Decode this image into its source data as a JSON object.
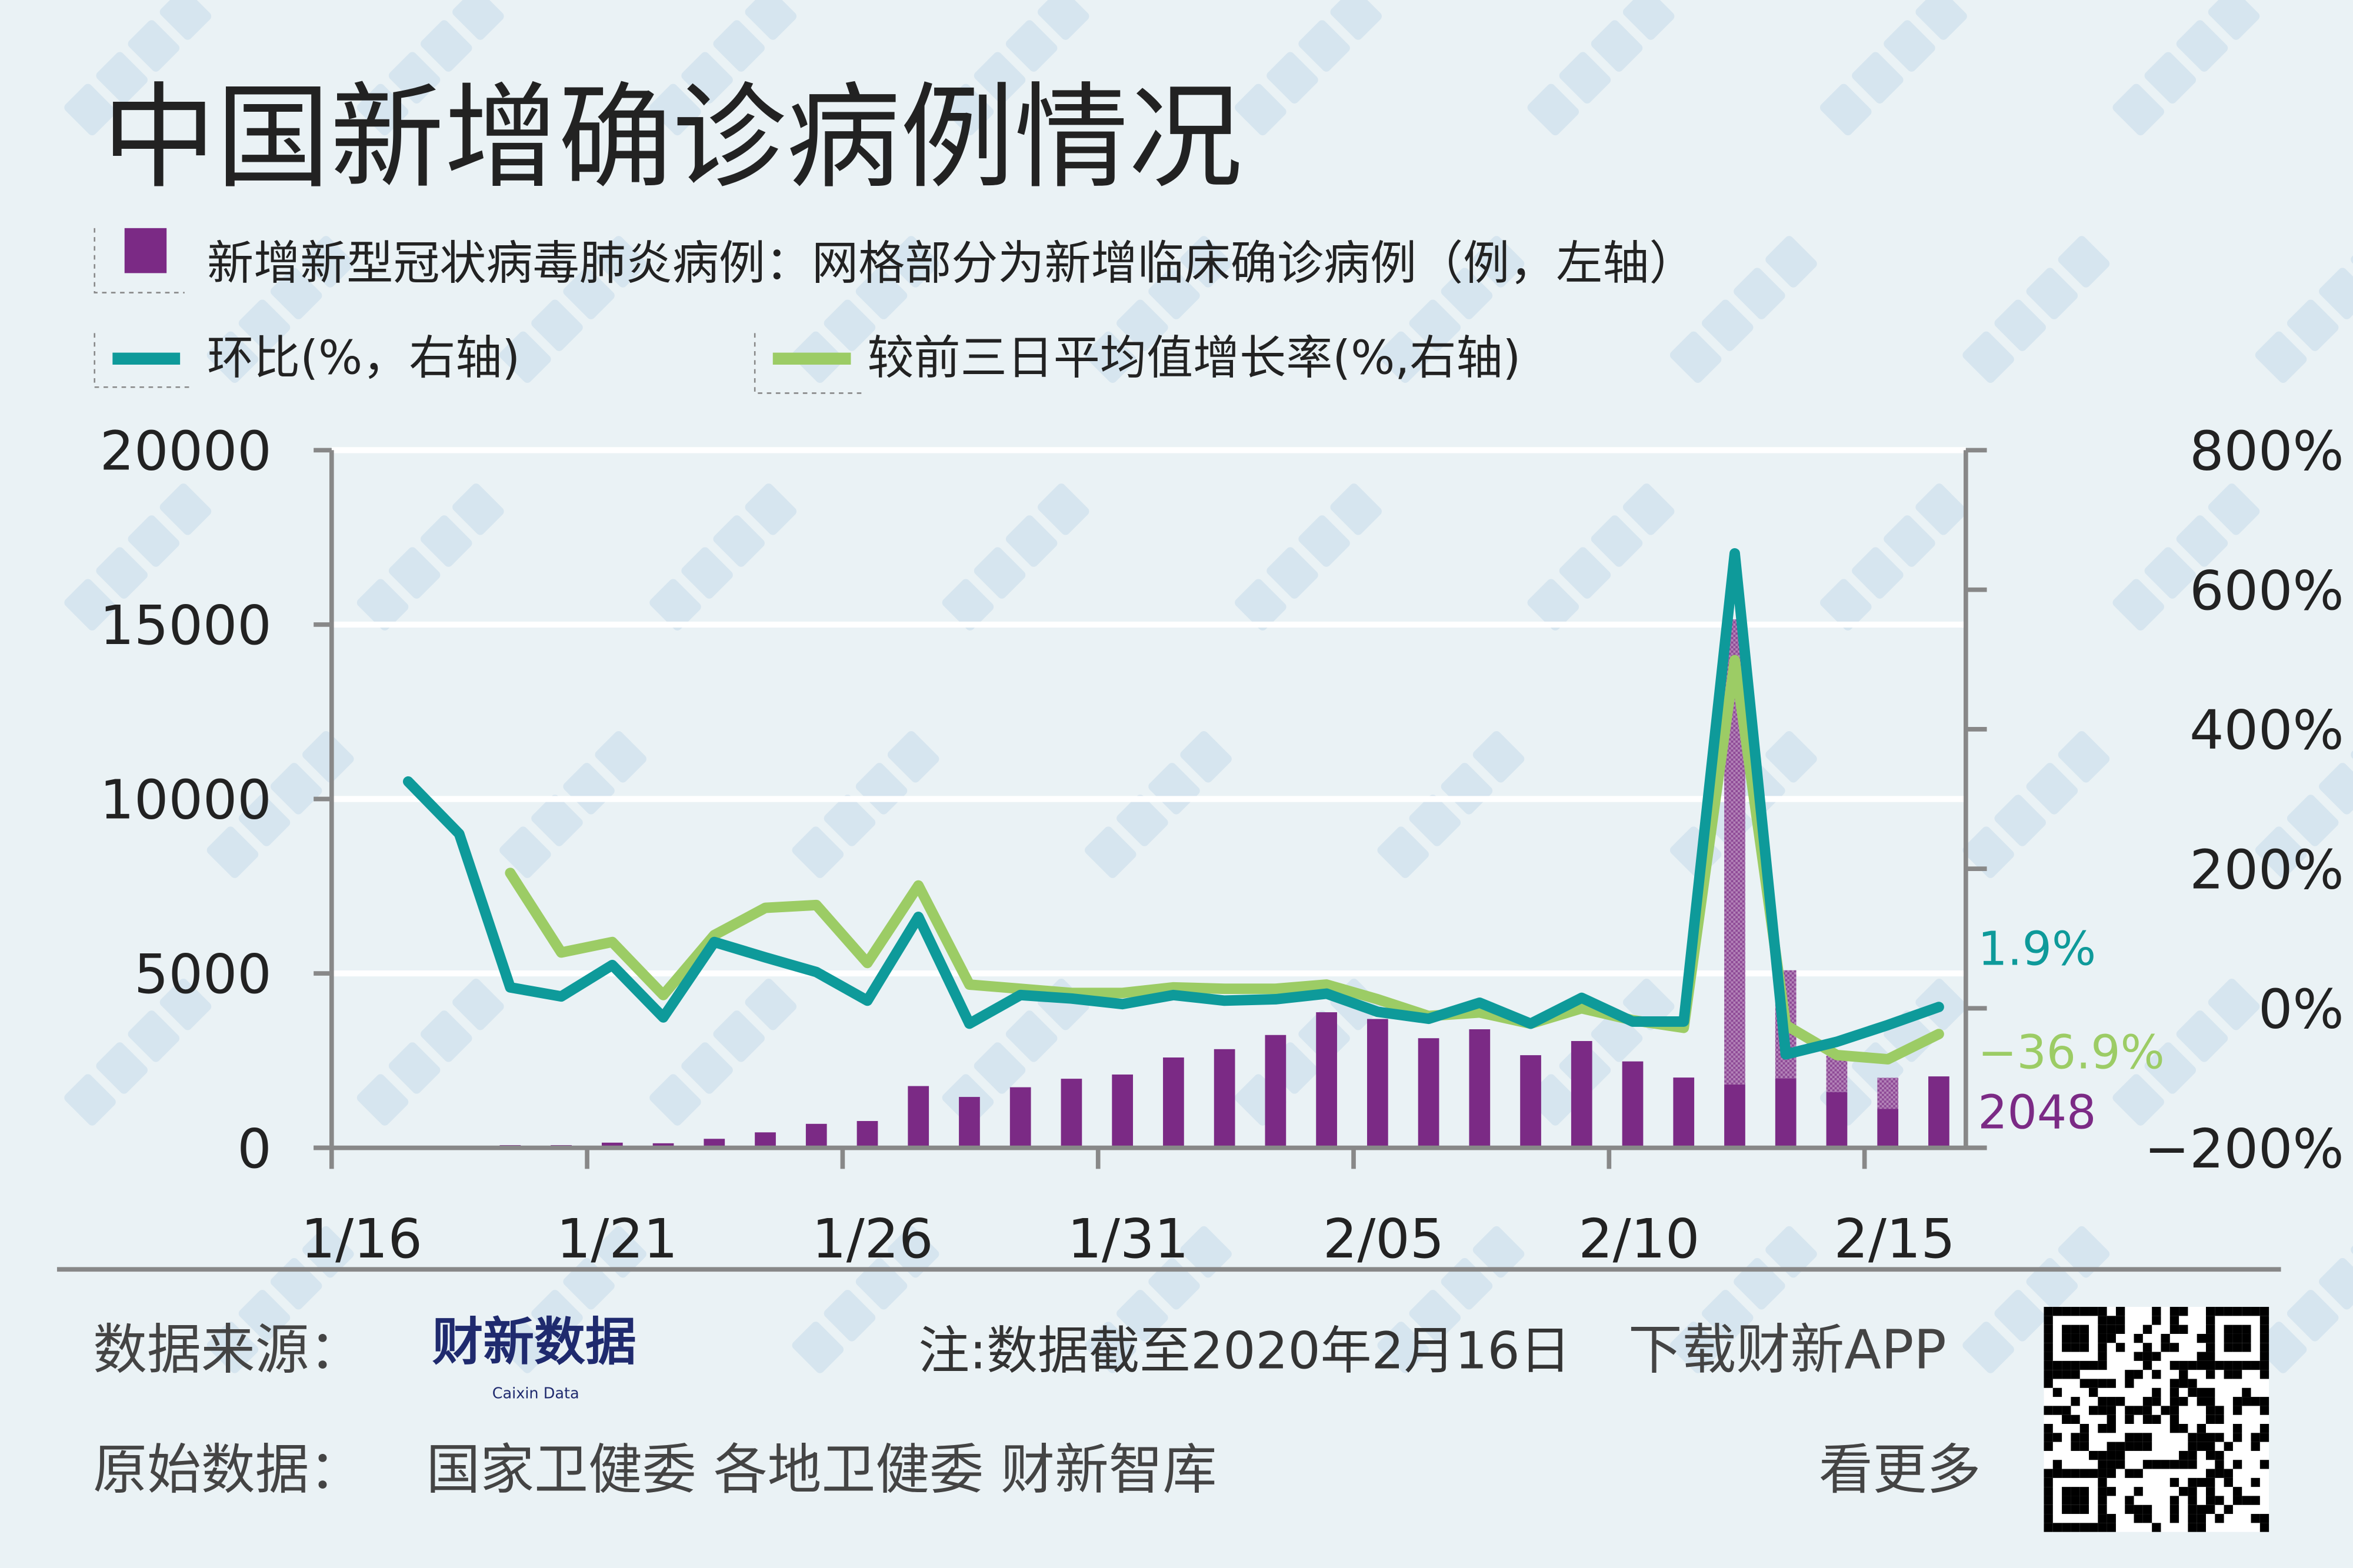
{
  "title": "中国新增确诊病例情况",
  "legend": {
    "bars": "新增新型冠状病毒肺炎病例：网格部分为新增临床确诊病例（例，左轴）",
    "line1": "环比(%，右轴)",
    "line2": "较前三日平均值增长率(%,右轴)"
  },
  "footer": {
    "source_label": "数据来源：",
    "source_logo": "财新数据",
    "source_logo_en": "Caixin Data",
    "note": "注:数据截至2020年2月16日",
    "download": "下载财新APP",
    "more": "看更多",
    "raw_label": "原始数据：",
    "raw_sources": "国家卫健委 各地卫健委 财新智库"
  },
  "watermark": "财新数据",
  "colors": {
    "bar": "#7b2a85",
    "bar_clinical": "#a668ad",
    "line1": "#0e9a9a",
    "line2": "#9ccc65",
    "background": "#eaf2f5"
  },
  "chart_data": {
    "type": "bar+line",
    "dates": [
      "1/16",
      "1/17",
      "1/18",
      "1/19",
      "1/20",
      "1/21",
      "1/22",
      "1/23",
      "1/24",
      "1/25",
      "1/26",
      "1/27",
      "1/28",
      "1/29",
      "1/30",
      "1/31",
      "2/01",
      "2/02",
      "2/03",
      "2/04",
      "2/05",
      "2/06",
      "2/07",
      "2/08",
      "2/09",
      "2/10",
      "2/11",
      "2/12",
      "2/13",
      "2/14",
      "2/15",
      "2/16"
    ],
    "x_tick_labels": [
      "1/16",
      "1/21",
      "1/26",
      "1/31",
      "2/05",
      "2/10",
      "2/15"
    ],
    "left_axis": {
      "ylim": [
        0,
        20000
      ],
      "ticks": [
        "0",
        "5000",
        "10000",
        "15000",
        "20000"
      ]
    },
    "right_axis": {
      "ylim": [
        -200,
        800
      ],
      "ticks": [
        "-200%",
        "0%",
        "200%",
        "400%",
        "600%",
        "800%"
      ]
    },
    "grid": true,
    "series": [
      {
        "name": "新增新型冠状病毒肺炎病例",
        "type": "bar",
        "axis": "left",
        "values": [
          4,
          17,
          59,
          77,
          77,
          149,
          131,
          259,
          444,
          688,
          769,
          1771,
          1459,
          1737,
          1981,
          2102,
          2590,
          2829,
          3235,
          3887,
          3694,
          3143,
          3399,
          2656,
          3062,
          2478,
          2015,
          15152,
          5090,
          2641,
          2009,
          2048
        ]
      },
      {
        "name": "新增临床确诊病例",
        "type": "bar-hatched",
        "axis": "left",
        "values": [
          0,
          0,
          0,
          0,
          0,
          0,
          0,
          0,
          0,
          0,
          0,
          0,
          0,
          0,
          0,
          0,
          0,
          0,
          0,
          0,
          0,
          0,
          0,
          0,
          0,
          0,
          0,
          13332,
          3095,
          1043,
          888,
          0
        ]
      },
      {
        "name": "环比",
        "type": "line",
        "axis": "right",
        "values": [
          null,
          325,
          250,
          30,
          17,
          62,
          -13,
          95,
          73,
          52,
          11,
          131,
          -22,
          19,
          14,
          6,
          19,
          11,
          13,
          21,
          -5,
          -15,
          8,
          -22,
          15,
          -19,
          -19,
          652,
          -66,
          -48,
          -24,
          1.9
        ]
      },
      {
        "name": "较前三日平均值增长率",
        "type": "line",
        "axis": "right",
        "values": [
          null,
          null,
          null,
          194,
          80,
          95,
          19,
          105,
          144,
          148,
          65,
          176,
          34,
          28,
          22,
          22,
          30,
          28,
          28,
          34,
          13,
          -11,
          -6,
          -22,
          0,
          -17,
          -28,
          499,
          -24,
          -67,
          -73,
          -36.9
        ]
      }
    ],
    "end_labels": {
      "line1": "1.9%",
      "line2": "−36.9%",
      "bar": "2048"
    }
  }
}
